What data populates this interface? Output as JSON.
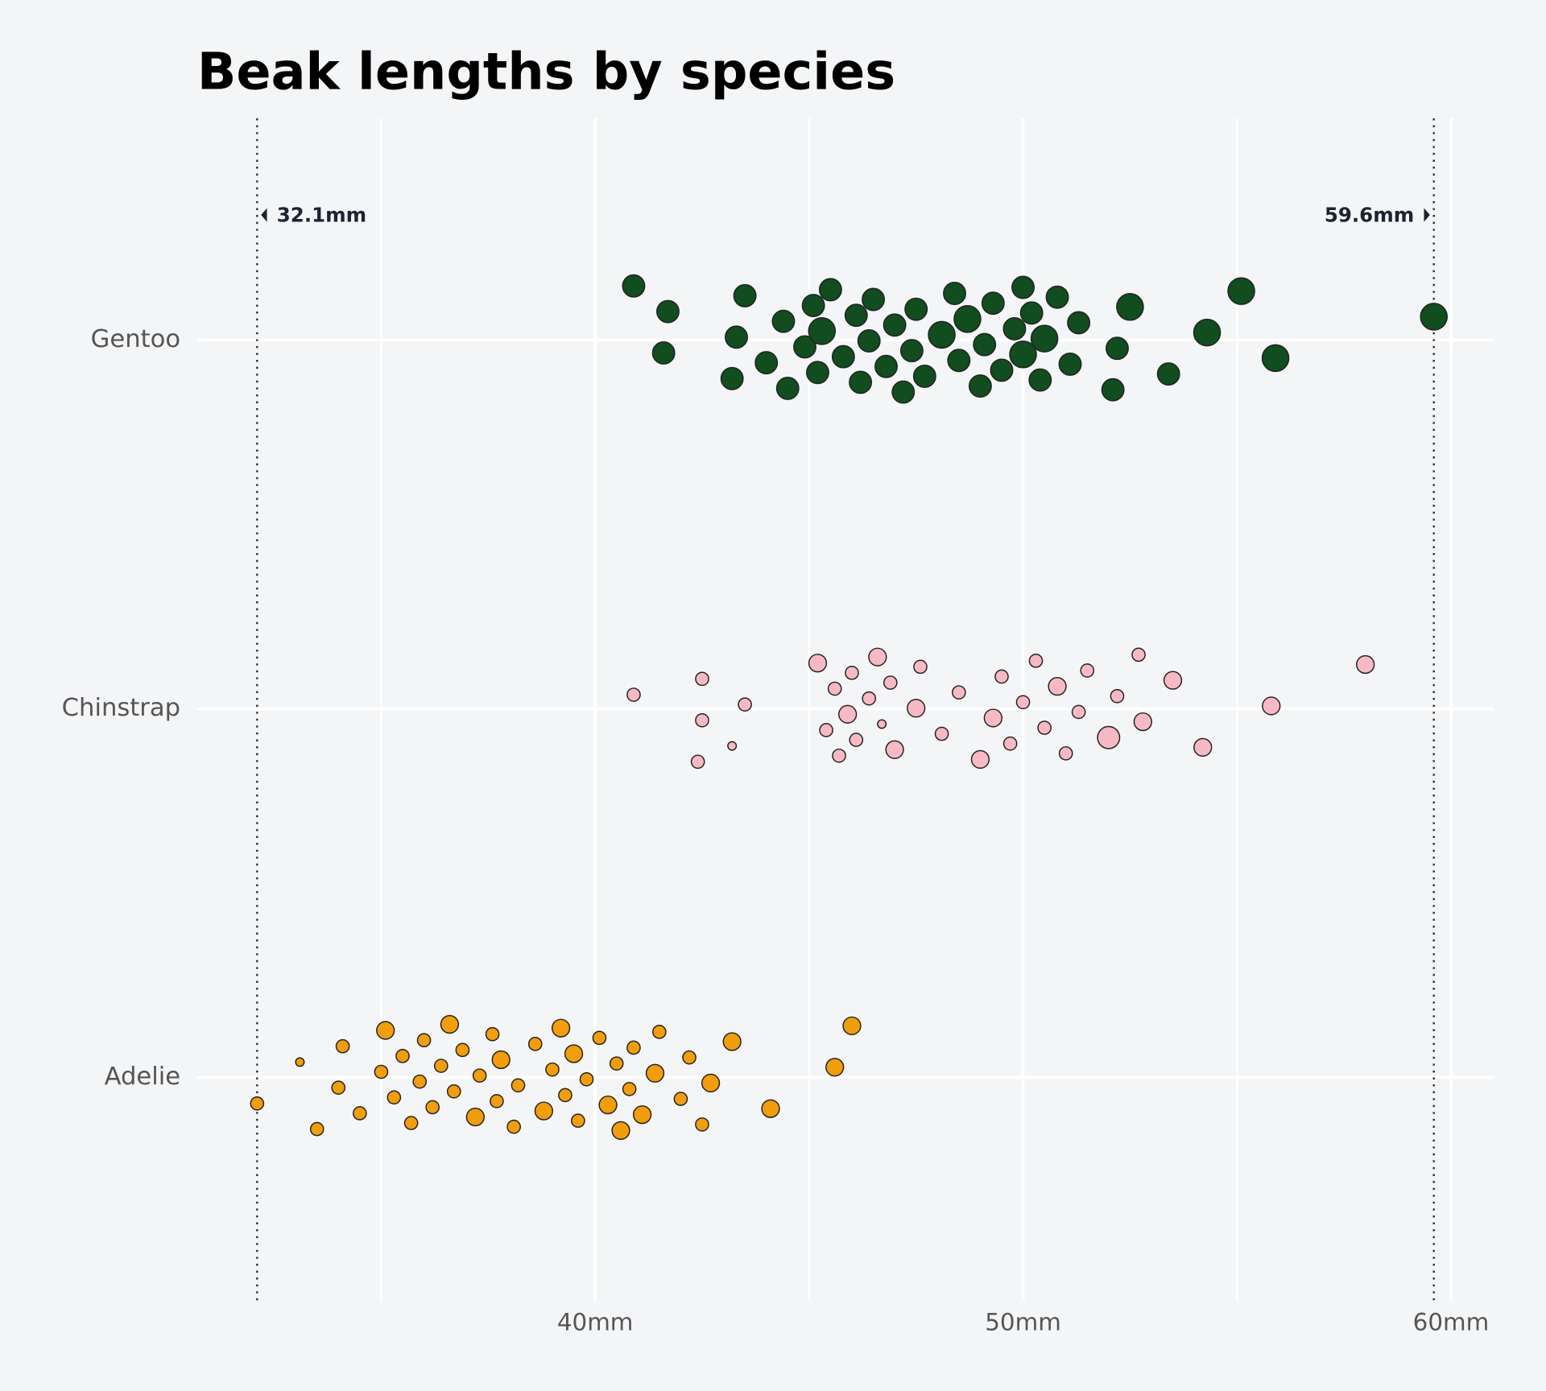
{
  "chart_data": {
    "type": "strip",
    "title": "Beak lengths by species",
    "categories": [
      "Gentoo",
      "Chinstrap",
      "Adelie"
    ],
    "xlim": [
      30.7,
      61
    ],
    "xticks": [
      {
        "value": 40,
        "label": "40mm"
      },
      {
        "value": 50,
        "label": "50mm"
      },
      {
        "value": 60,
        "label": "60mm"
      }
    ],
    "minor_xticks": [
      35,
      45,
      55
    ],
    "grid": true,
    "annotations": [
      {
        "value": 32.1,
        "label": "32.1mm"
      },
      {
        "value": 59.6,
        "label": "59.6mm"
      }
    ],
    "series": [
      {
        "color": "#114d1f",
        "values": [
          40.9,
          41.6,
          41.7,
          43.2,
          43.3,
          43.5,
          44.0,
          44.4,
          44.5,
          44.9,
          45.1,
          45.2,
          45.3,
          45.5,
          45.8,
          46.1,
          46.2,
          46.4,
          46.5,
          46.8,
          47.0,
          47.2,
          47.4,
          47.5,
          47.7,
          48.1,
          48.4,
          48.5,
          48.7,
          49.0,
          49.1,
          49.3,
          49.5,
          49.8,
          50.0,
          50.0,
          50.2,
          50.4,
          50.5,
          50.8,
          51.1,
          51.3,
          52.1,
          52.2,
          52.5,
          53.4,
          54.3,
          55.1,
          55.9,
          59.6
        ],
        "sizes": [
          4,
          4,
          4,
          4,
          4,
          4,
          4,
          4,
          4,
          4,
          4,
          4,
          5,
          4,
          4,
          4,
          4,
          4,
          4,
          4,
          4,
          4,
          4,
          4,
          4,
          5,
          4,
          4,
          5,
          4,
          4,
          4,
          4,
          4,
          4,
          5,
          4,
          4,
          5,
          4,
          4,
          4,
          4,
          4,
          5,
          4,
          5,
          5,
          5,
          5
        ]
      },
      {
        "color": "#f7b9c4",
        "values": [
          40.9,
          42.4,
          42.5,
          42.5,
          43.2,
          43.5,
          45.2,
          45.4,
          45.6,
          45.7,
          45.9,
          46.0,
          46.1,
          46.4,
          46.6,
          46.7,
          46.9,
          47.0,
          47.5,
          47.6,
          48.1,
          48.5,
          49.0,
          49.3,
          49.5,
          49.7,
          50.0,
          50.3,
          50.5,
          50.8,
          51.0,
          51.3,
          51.5,
          52.0,
          52.2,
          52.7,
          52.8,
          53.5,
          54.2,
          55.8,
          58.0
        ],
        "sizes": [
          2,
          2,
          2,
          2,
          1,
          2,
          3,
          2,
          2,
          2,
          3,
          2,
          2,
          2,
          3,
          1,
          2,
          3,
          3,
          2,
          2,
          2,
          3,
          3,
          2,
          2,
          2,
          2,
          2,
          3,
          2,
          2,
          2,
          4,
          2,
          2,
          3,
          3,
          3,
          3,
          3
        ]
      },
      {
        "color": "#f29d0c",
        "values": [
          32.1,
          33.1,
          33.5,
          34.0,
          34.1,
          34.5,
          35.0,
          35.1,
          35.3,
          35.5,
          35.7,
          35.9,
          36.0,
          36.2,
          36.4,
          36.6,
          36.7,
          36.9,
          37.2,
          37.3,
          37.6,
          37.7,
          37.8,
          38.1,
          38.2,
          38.6,
          38.8,
          39.0,
          39.2,
          39.3,
          39.5,
          39.6,
          39.8,
          40.1,
          40.3,
          40.5,
          40.6,
          40.8,
          40.9,
          41.1,
          41.4,
          41.5,
          42.0,
          42.2,
          42.5,
          42.7,
          43.2,
          44.1,
          45.6,
          46.0
        ],
        "sizes": [
          2,
          1,
          2,
          2,
          2,
          2,
          2,
          3,
          2,
          2,
          2,
          2,
          2,
          2,
          2,
          3,
          2,
          2,
          3,
          2,
          2,
          2,
          3,
          2,
          2,
          2,
          3,
          2,
          3,
          2,
          3,
          2,
          2,
          2,
          3,
          2,
          3,
          2,
          2,
          3,
          3,
          2,
          2,
          2,
          2,
          3,
          3,
          3,
          3,
          3
        ]
      }
    ]
  }
}
